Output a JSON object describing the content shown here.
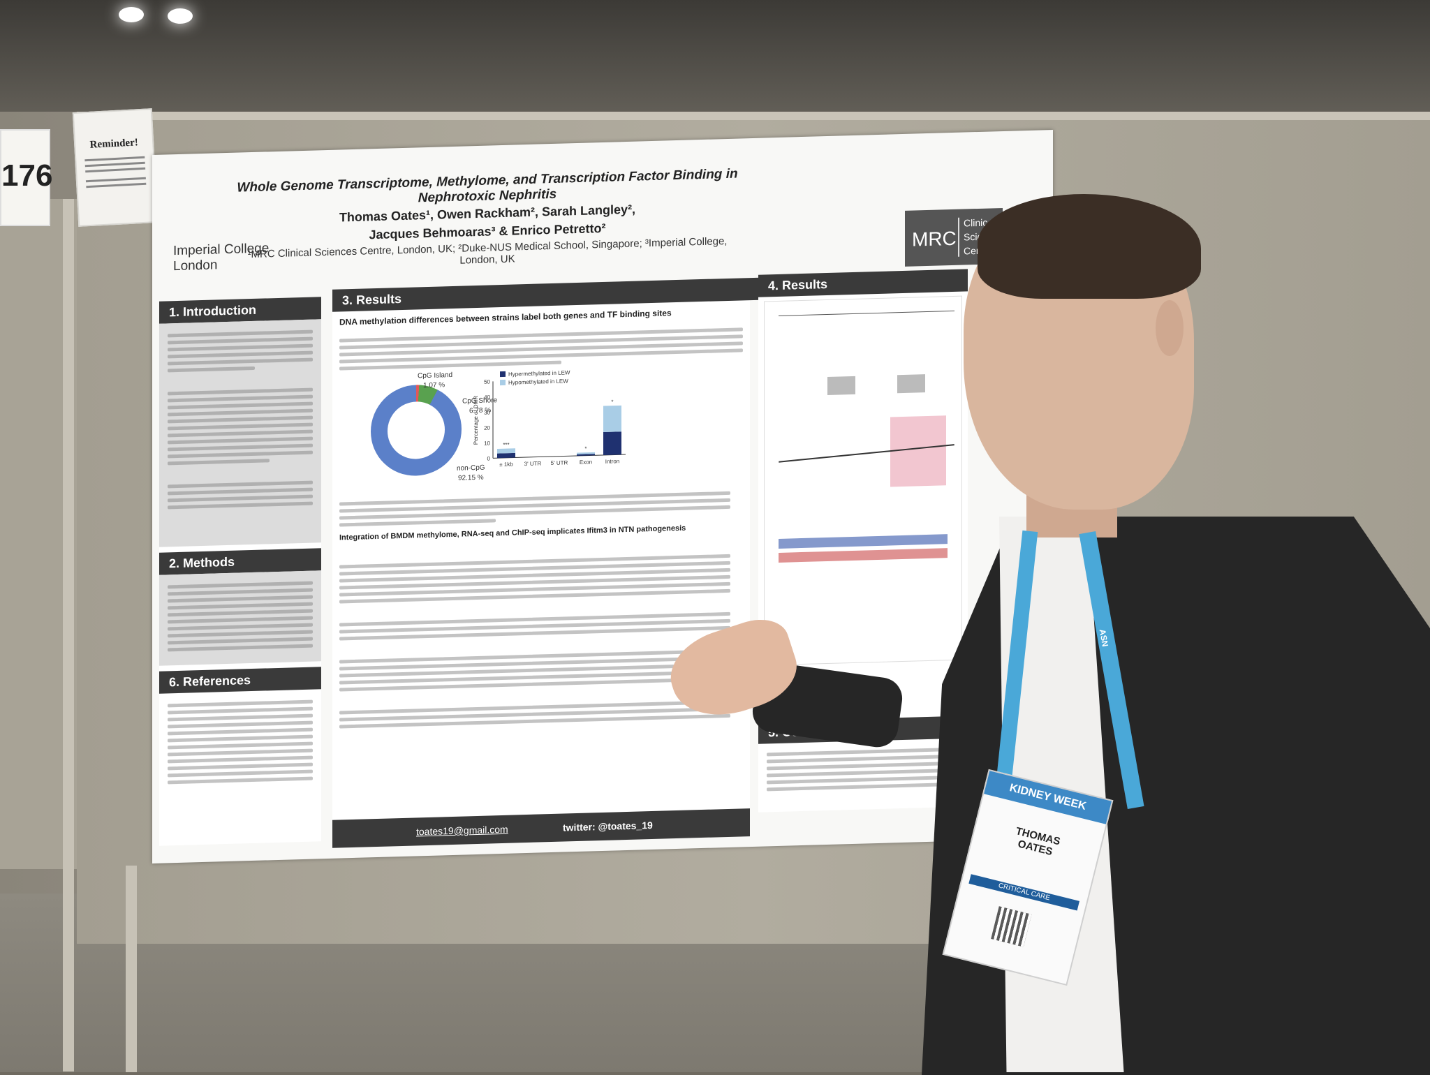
{
  "scene": {
    "description_color": "#a8a396"
  },
  "signs": {
    "number": "176",
    "reminder_title": "Reminder!"
  },
  "poster": {
    "title": "Whole Genome Transcriptome, Methylome, and Transcription Factor Binding in Nephrotoxic Nephritis",
    "authors_line1": "Thomas Oates¹, Owen Rackham², Sarah Langley²,",
    "authors_line2": "Jacques Behmoaras³ & Enrico Petretto²",
    "affiliations": "¹MRC Clinical Sciences Centre, London, UK; ²Duke-NUS Medical School, Singapore; ³Imperial College, London, UK",
    "imperial_line1": "Imperial College",
    "imperial_line2": "London",
    "mrc_logo": "MRC",
    "mrc_right_1": "Clinic",
    "mrc_right_2": "Scien",
    "mrc_right_3": "Centre",
    "sections": {
      "introduction": "1. Introduction",
      "methods": "2. Methods",
      "results_a": "3. Results",
      "references": "6. References",
      "results_b": "4. Results",
      "conclusions": "5. Conclusions"
    },
    "results_subhead": "DNA methylation differences between strains label both genes and TF binding sites",
    "integration_subhead": "Integration of BMDM methylome, RNA-seq and ChIP-seq implicates Ifitm3 in NTN pathogenesis",
    "email": "toates19@gmail.com",
    "twitter": "twitter: @toates_19"
  },
  "chart_data": [
    {
      "type": "pie",
      "categories": [
        "CpG Island",
        "CpG Shore",
        "non-CpG"
      ],
      "values": [
        1.07,
        6.78,
        92.15
      ],
      "labels": [
        "1.07 %",
        "6.78 %",
        "92.15 %"
      ]
    },
    {
      "type": "bar",
      "categories": [
        "± 1kb",
        "3' UTR",
        "5' UTR",
        "Exon",
        "Intron"
      ],
      "series": [
        {
          "name": "Hypermethylated in LEW",
          "values": [
            3,
            0,
            0,
            1,
            15
          ]
        },
        {
          "name": "Hypomethylated in LEW",
          "values": [
            3,
            0,
            0,
            1,
            17
          ]
        }
      ],
      "ylabel": "Percentage of DMR",
      "ylim": [
        0,
        50
      ],
      "yticks": [
        "0",
        "10",
        "20",
        "30",
        "40",
        "50"
      ],
      "annotations": [
        "***",
        "*",
        "*"
      ]
    }
  ],
  "badge": {
    "event": "KIDNEY WEEK",
    "name_line1": "THOMAS",
    "name_line2": "OATES",
    "category": "CRITICAL CARE",
    "lanyard_text": "ASN"
  }
}
